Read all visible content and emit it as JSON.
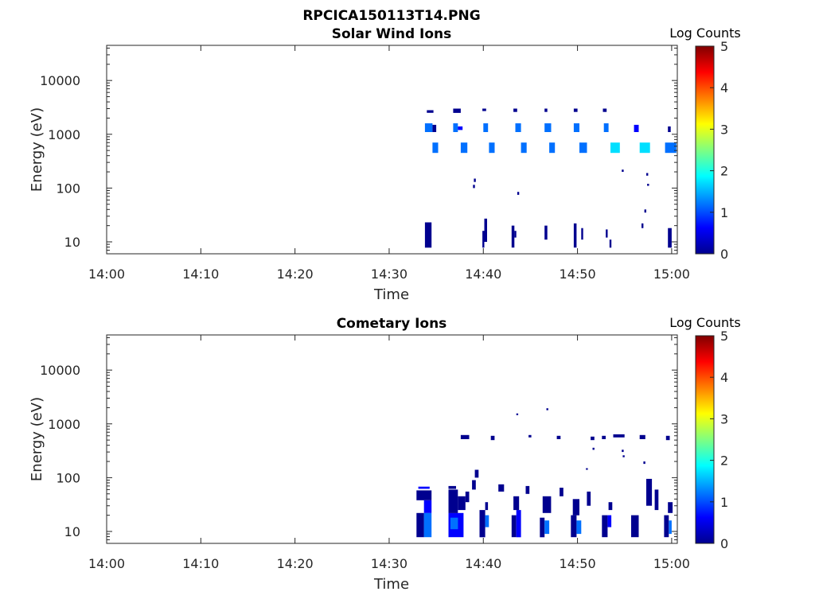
{
  "figure": {
    "filename_title": "RPCICA150113T14.PNG"
  },
  "colormap": [
    "#00008f",
    "#0000ff",
    "#0070ff",
    "#00dfff",
    "#50ffaf",
    "#bfff40",
    "#ffcf00",
    "#ff6000",
    "#ef0000",
    "#800000"
  ],
  "chart_data": [
    {
      "type": "heatmap",
      "title": "Solar Wind Ions",
      "xlabel": "Time",
      "ylabel": "Energy (eV)",
      "x_ticks": [
        "14:00",
        "14:10",
        "14:20",
        "14:30",
        "14:40",
        "14:50",
        "15:00"
      ],
      "x_tick_minutes": [
        0,
        10,
        20,
        30,
        40,
        50,
        60
      ],
      "xlim_minutes": [
        0,
        60.6
      ],
      "y_scale": "log",
      "ylim": [
        6,
        45000
      ],
      "y_ticks": [
        "10",
        "100",
        "1000",
        "10000"
      ],
      "y_tick_values": [
        10,
        100,
        1000,
        10000
      ],
      "colorbar": {
        "label": "Log Counts",
        "min": 0,
        "max": 5,
        "ticks": [
          "0",
          "1",
          "2",
          "3",
          "4",
          "5"
        ]
      },
      "cells": [
        [
          33.8,
          34.5,
          7.8,
          23,
          0.1
        ],
        [
          36.8,
          37.6,
          2500,
          3000,
          0.15
        ],
        [
          34.0,
          34.7,
          2500,
          2800,
          0.1
        ],
        [
          33.8,
          34.6,
          1100,
          1600,
          1.1
        ],
        [
          34.6,
          35.0,
          1100,
          1500,
          0.4
        ],
        [
          34.6,
          35.2,
          450,
          700,
          1.3
        ],
        [
          36.8,
          37.3,
          1100,
          1600,
          1.2
        ],
        [
          37.3,
          37.8,
          1200,
          1400,
          0.5
        ],
        [
          37.6,
          38.3,
          450,
          700,
          1.0
        ],
        [
          39.9,
          40.3,
          2700,
          3000,
          0.3
        ],
        [
          40.0,
          40.5,
          1100,
          1600,
          1.0
        ],
        [
          40.6,
          41.2,
          450,
          700,
          1.1
        ],
        [
          43.2,
          43.6,
          2600,
          3000,
          0.3
        ],
        [
          43.4,
          44.0,
          1100,
          1600,
          1.2
        ],
        [
          44.0,
          44.6,
          450,
          700,
          1.2
        ],
        [
          46.5,
          46.8,
          2600,
          3000,
          0.3
        ],
        [
          46.5,
          47.2,
          1100,
          1600,
          1.4
        ],
        [
          47.0,
          47.6,
          450,
          700,
          1.1
        ],
        [
          49.6,
          50.0,
          2600,
          3000,
          0.3
        ],
        [
          49.6,
          50.2,
          1100,
          1600,
          1.2
        ],
        [
          50.2,
          51.0,
          450,
          700,
          1.3
        ],
        [
          52.7,
          53.1,
          2600,
          3000,
          0.2
        ],
        [
          52.8,
          53.3,
          1100,
          1600,
          1.0
        ],
        [
          53.5,
          54.5,
          450,
          700,
          1.8
        ],
        [
          56.0,
          56.5,
          1100,
          1500,
          0.8
        ],
        [
          56.6,
          57.7,
          450,
          700,
          1.7
        ],
        [
          59.6,
          59.9,
          1100,
          1400,
          0.3
        ],
        [
          59.3,
          60.5,
          450,
          700,
          1.4
        ],
        [
          40.1,
          40.4,
          10,
          27,
          0.2
        ],
        [
          39.9,
          40.1,
          7.8,
          16,
          0.1
        ],
        [
          43.0,
          43.3,
          7.8,
          20,
          0.1
        ],
        [
          43.3,
          43.5,
          12,
          16,
          0.2
        ],
        [
          46.5,
          46.8,
          11,
          20,
          0.1
        ],
        [
          49.6,
          49.9,
          7.8,
          22,
          0.1
        ],
        [
          50.4,
          50.6,
          11,
          18,
          0.1
        ],
        [
          53.0,
          53.2,
          12,
          17,
          0.1
        ],
        [
          53.4,
          53.6,
          7.8,
          11,
          0.1
        ],
        [
          56.8,
          57.0,
          18,
          22,
          0.1
        ],
        [
          59.6,
          60.0,
          7.8,
          18,
          0.3
        ],
        [
          39.0,
          39.2,
          130,
          150,
          0.1
        ],
        [
          38.9,
          39.1,
          100,
          115,
          0.1
        ],
        [
          43.6,
          43.8,
          75,
          85,
          0.1
        ],
        [
          54.7,
          54.9,
          200,
          220,
          0.1
        ],
        [
          57.3,
          57.5,
          170,
          190,
          0.1
        ],
        [
          57.4,
          57.6,
          110,
          120,
          0.1
        ],
        [
          57.1,
          57.3,
          35,
          40,
          0.1
        ]
      ]
    },
    {
      "type": "heatmap",
      "title": "Cometary Ions",
      "xlabel": "Time",
      "ylabel": "Energy (eV)",
      "x_ticks": [
        "14:00",
        "14:10",
        "14:20",
        "14:30",
        "14:40",
        "14:50",
        "15:00"
      ],
      "x_tick_minutes": [
        0,
        10,
        20,
        30,
        40,
        50,
        60
      ],
      "xlim_minutes": [
        0,
        60.6
      ],
      "y_scale": "log",
      "ylim": [
        6,
        45000
      ],
      "y_ticks": [
        "10",
        "100",
        "1000",
        "10000"
      ],
      "y_tick_values": [
        10,
        100,
        1000,
        10000
      ],
      "colorbar": {
        "label": "Log Counts",
        "min": 0,
        "max": 5,
        "ticks": [
          "0",
          "1",
          "2",
          "3",
          "4",
          "5"
        ]
      },
      "cells": [
        [
          32.9,
          33.7,
          7.8,
          22,
          0.3
        ],
        [
          33.7,
          34.5,
          7.8,
          22,
          1.3
        ],
        [
          32.9,
          34.5,
          38,
          58,
          0.2
        ],
        [
          33.7,
          34.5,
          22,
          38,
          0.5
        ],
        [
          33.1,
          34.3,
          62,
          68,
          0.6
        ],
        [
          36.3,
          37.9,
          7.8,
          22,
          0.5
        ],
        [
          36.5,
          37.3,
          11,
          18,
          1.0
        ],
        [
          36.3,
          37.3,
          22,
          60,
          0.2
        ],
        [
          37.3,
          38.1,
          25,
          45,
          0.4
        ],
        [
          36.3,
          37.1,
          62,
          70,
          0.4
        ],
        [
          38.1,
          38.5,
          35,
          55,
          0.3
        ],
        [
          39.6,
          40.2,
          7.8,
          25,
          0.3
        ],
        [
          40.2,
          40.6,
          12,
          20,
          1.1
        ],
        [
          40.2,
          40.5,
          25,
          35,
          0.3
        ],
        [
          38.8,
          39.2,
          60,
          90,
          0.2
        ],
        [
          39.1,
          39.5,
          100,
          140,
          0.2
        ],
        [
          43.0,
          43.5,
          7.8,
          20,
          0.4
        ],
        [
          43.5,
          44.0,
          7.8,
          25,
          0.6
        ],
        [
          43.2,
          43.8,
          25,
          45,
          0.3
        ],
        [
          41.6,
          42.2,
          55,
          75,
          0.2
        ],
        [
          44.5,
          44.9,
          50,
          70,
          0.2
        ],
        [
          46.0,
          46.5,
          7.8,
          18,
          0.4
        ],
        [
          46.5,
          47.0,
          9,
          16,
          1.0
        ],
        [
          46.3,
          47.2,
          22,
          45,
          0.3
        ],
        [
          48.1,
          48.5,
          45,
          65,
          0.2
        ],
        [
          49.3,
          49.9,
          7.8,
          20,
          0.4
        ],
        [
          49.9,
          50.4,
          9,
          16,
          1.3
        ],
        [
          49.5,
          50.2,
          20,
          40,
          0.3
        ],
        [
          51.0,
          51.4,
          30,
          55,
          0.2
        ],
        [
          52.6,
          53.2,
          7.8,
          20,
          0.4
        ],
        [
          53.2,
          53.6,
          12,
          20,
          0.6
        ],
        [
          53.3,
          53.7,
          25,
          35,
          0.3
        ],
        [
          55.7,
          56.5,
          7.8,
          20,
          0.3
        ],
        [
          59.2,
          59.7,
          7.8,
          20,
          0.4
        ],
        [
          59.7,
          60.0,
          9,
          16,
          1.3
        ],
        [
          59.6,
          60.1,
          22,
          35,
          0.3
        ],
        [
          57.3,
          57.9,
          30,
          95,
          0.3
        ],
        [
          58.2,
          58.6,
          25,
          60,
          0.2
        ],
        [
          37.6,
          38.5,
          520,
          620,
          0.2
        ],
        [
          40.8,
          41.2,
          500,
          600,
          0.2
        ],
        [
          44.8,
          45.1,
          560,
          620,
          0.2
        ],
        [
          47.8,
          48.2,
          520,
          600,
          0.2
        ],
        [
          51.4,
          51.8,
          500,
          580,
          0.2
        ],
        [
          52.6,
          53.0,
          520,
          600,
          0.2
        ],
        [
          53.8,
          55.0,
          560,
          640,
          0.4
        ],
        [
          56.6,
          57.2,
          520,
          620,
          0.2
        ],
        [
          59.4,
          59.8,
          500,
          600,
          0.2
        ],
        [
          43.5,
          43.7,
          1450,
          1560,
          0.1
        ],
        [
          46.7,
          46.9,
          1800,
          1950,
          0.1
        ],
        [
          51.6,
          51.8,
          330,
          360,
          0.1
        ],
        [
          54.7,
          54.9,
          300,
          330,
          0.1
        ],
        [
          54.8,
          55.0,
          240,
          260,
          0.1
        ],
        [
          57.0,
          57.2,
          180,
          200,
          0.1
        ],
        [
          50.9,
          51.1,
          140,
          150,
          0.1
        ]
      ]
    }
  ]
}
